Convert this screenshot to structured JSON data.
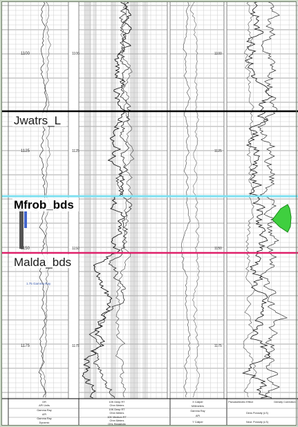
{
  "depths": {
    "track1": [
      "1100",
      "1125",
      "1150",
      "1175"
    ],
    "track2": [
      "1100",
      "1125",
      "1150",
      "1175"
    ],
    "track4": [
      "1100",
      "1125",
      "1150",
      "1175"
    ]
  },
  "markers": [
    {
      "name": "Jwatrs_L",
      "color": "#000000"
    },
    {
      "name": "Mfrob_bds",
      "color": "#7fe0f0"
    },
    {
      "name": "Malda_bds",
      "color": "#e0206a"
    }
  ],
  "annotation": "1.75 Gamma Ray",
  "footer": {
    "track1": [
      "GR",
      "API Units",
      "Gamma Ray",
      "API",
      "Gamma Ray",
      "Dynamic"
    ],
    "track2": [
      "10K Deep RT",
      "Ohm Meters",
      "10K Deep RT",
      "Ohm Meters",
      "10K Medium RT",
      "Ohm Meters",
      "OHL Resistivity"
    ],
    "track3": [
      "X Caliper",
      "Millimeters",
      "Gamma Ray",
      "API",
      "Y Caliper"
    ],
    "track4": [
      "Pseudoelectric Effect",
      "Density Correction",
      "Dens Porosity (LS)",
      "Neut. Porosity (LS)"
    ]
  },
  "colors": {
    "background": "#c9d6c4",
    "paper": "#ffffff",
    "grid_minor": "#c8c8c8",
    "grid_major": "#8c8c8c",
    "curve": "#222222",
    "fill_green": "#3fcf3f",
    "shade_gray": "#a8a8a8",
    "scale_blue": "#4466cc"
  }
}
